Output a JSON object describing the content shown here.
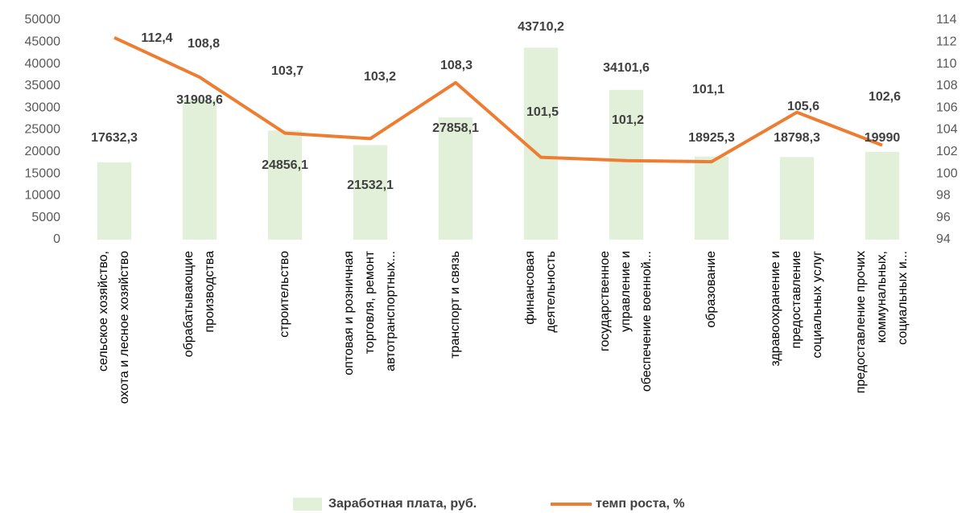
{
  "chart_data": {
    "type": "bar_line",
    "categories": [
      "сельское хозяйство,\nохота и лесное хозяйство",
      "обрабатывающие\nпроизводства",
      "строительство",
      "оптовая и розничная\nторговля, ремонт\nавтотранспортных...",
      "транспорт и связь",
      "финансовая\nдеятельность",
      "государственное\nуправление и\nобеспечение военной...",
      "образование",
      "здравоохранение и\nпредоставление\nсоциальных услуг",
      "предоставление прочих\nкоммунальных,\nсоциальных  и..."
    ],
    "series": [
      {
        "name": "Заработная плата, руб.",
        "color": "#e2f0d9",
        "type": "bar",
        "values": [
          17632.3,
          31908.6,
          24856.1,
          21532.1,
          27858.1,
          43710.2,
          34101.6,
          18925.3,
          18798.3,
          19990
        ],
        "value_labels": [
          "17632,3",
          "31908,6",
          "24856,1",
          "21532,1",
          "27858,1",
          "43710,2",
          "34101,6",
          "18925,3",
          "18798,3",
          "19990"
        ]
      },
      {
        "name": "темп роста, %",
        "color": "#ed7d31",
        "type": "line",
        "axis": "y2",
        "values": [
          112.4,
          108.8,
          103.7,
          103.2,
          108.3,
          101.5,
          101.2,
          101.1,
          105.6,
          102.6
        ],
        "value_labels": [
          "112,4",
          "108,8",
          "103,7",
          "103,2",
          "108,3",
          "101,5",
          "101,2",
          "101,1",
          "105,6",
          "102,6"
        ]
      }
    ],
    "ylim": [
      0,
      50000
    ],
    "yticks": [
      0,
      5000,
      10000,
      15000,
      20000,
      25000,
      30000,
      35000,
      40000,
      45000,
      50000
    ],
    "y2lim": [
      94,
      114
    ],
    "y2ticks": [
      94,
      96,
      98,
      100,
      102,
      104,
      106,
      108,
      110,
      112,
      114
    ],
    "legend": "bottom"
  }
}
